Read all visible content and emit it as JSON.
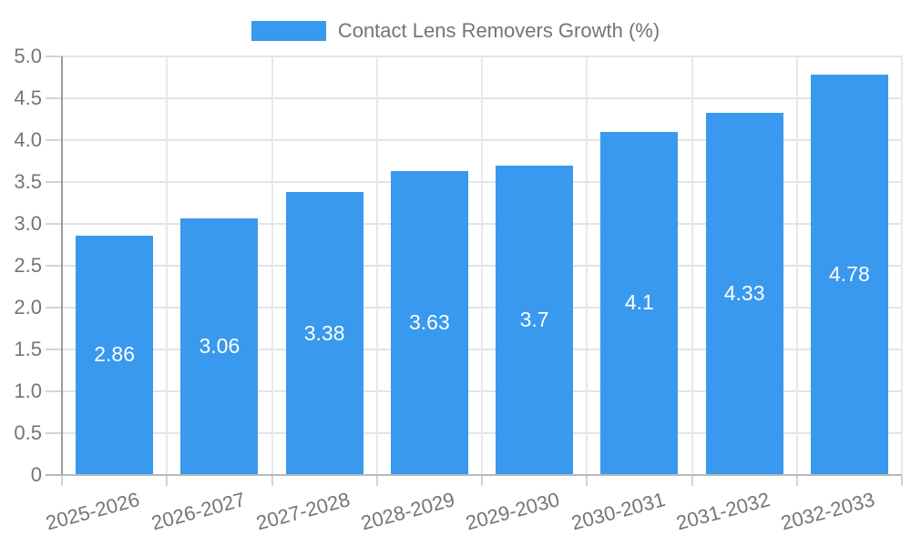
{
  "legend": {
    "label": "Contact Lens Removers Growth (%)",
    "position": "top"
  },
  "chart_data": {
    "type": "bar",
    "title": "Contact Lens Removers Growth (%)",
    "categories": [
      "2025-2026",
      "2026-2027",
      "2027-2028",
      "2028-2029",
      "2029-2030",
      "2030-2031",
      "2031-2032",
      "2032-2033"
    ],
    "values": [
      2.86,
      3.06,
      3.38,
      3.63,
      3.7,
      4.1,
      4.33,
      4.78
    ],
    "value_labels": [
      "2.86",
      "3.06",
      "3.38",
      "3.63",
      "3.7",
      "4.1",
      "4.33",
      "4.78"
    ],
    "series_name": "Contact Lens Removers Growth (%)",
    "xlabel": "",
    "ylabel": "",
    "ylim": [
      0,
      5
    ],
    "ytick_step": 0.5,
    "ytick_labels": [
      "0",
      "0.5",
      "1.0",
      "1.5",
      "2.0",
      "2.5",
      "3.0",
      "3.5",
      "4.0",
      "4.5",
      "5.0"
    ],
    "grid": true,
    "legend_position": "top",
    "xlabel_rotation_deg": -15,
    "colors": {
      "bar": "#3899EE",
      "bar_label": "#FFFFFF",
      "axis_text": "#757575",
      "gridline": "#E4E4E4",
      "gridline_v": "#E8E8E8",
      "y_axis_line": "#9A9A9A",
      "baseline": "#B8B8B8",
      "tick": "#D4D4D4"
    }
  }
}
